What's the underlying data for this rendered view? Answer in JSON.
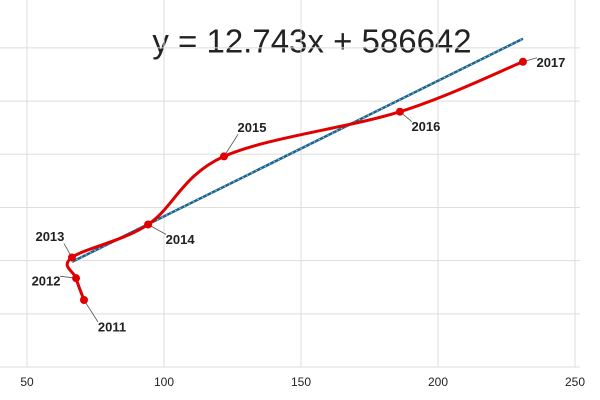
{
  "chart_data": {
    "type": "scatter",
    "equation": "y = 12.743x + 586642",
    "series": [
      {
        "color": "#e00000",
        "labels": [
          "2011",
          "2012",
          "2013",
          "2014",
          "2015",
          "2016",
          "2017"
        ],
        "x": [
          70.8,
          67.9,
          66.4,
          94.2,
          121.9,
          186.1,
          231
        ],
        "values": [
          587130,
          587335,
          587530,
          587840,
          588480,
          588900,
          589370
        ]
      }
    ],
    "trendline": {
      "color": "#1f5f8b",
      "x": [
        66.4,
        231
      ],
      "values": [
        587488,
        589586
      ]
    },
    "xlim": [
      50,
      250
    ],
    "xticks": [
      50,
      100,
      150,
      200,
      250
    ],
    "ylim": [
      586500,
      589800
    ],
    "yticks": [
      586500,
      587000,
      587500,
      588000,
      588500,
      589000,
      589500
    ],
    "show_ytick_labels": false,
    "grid": true
  }
}
